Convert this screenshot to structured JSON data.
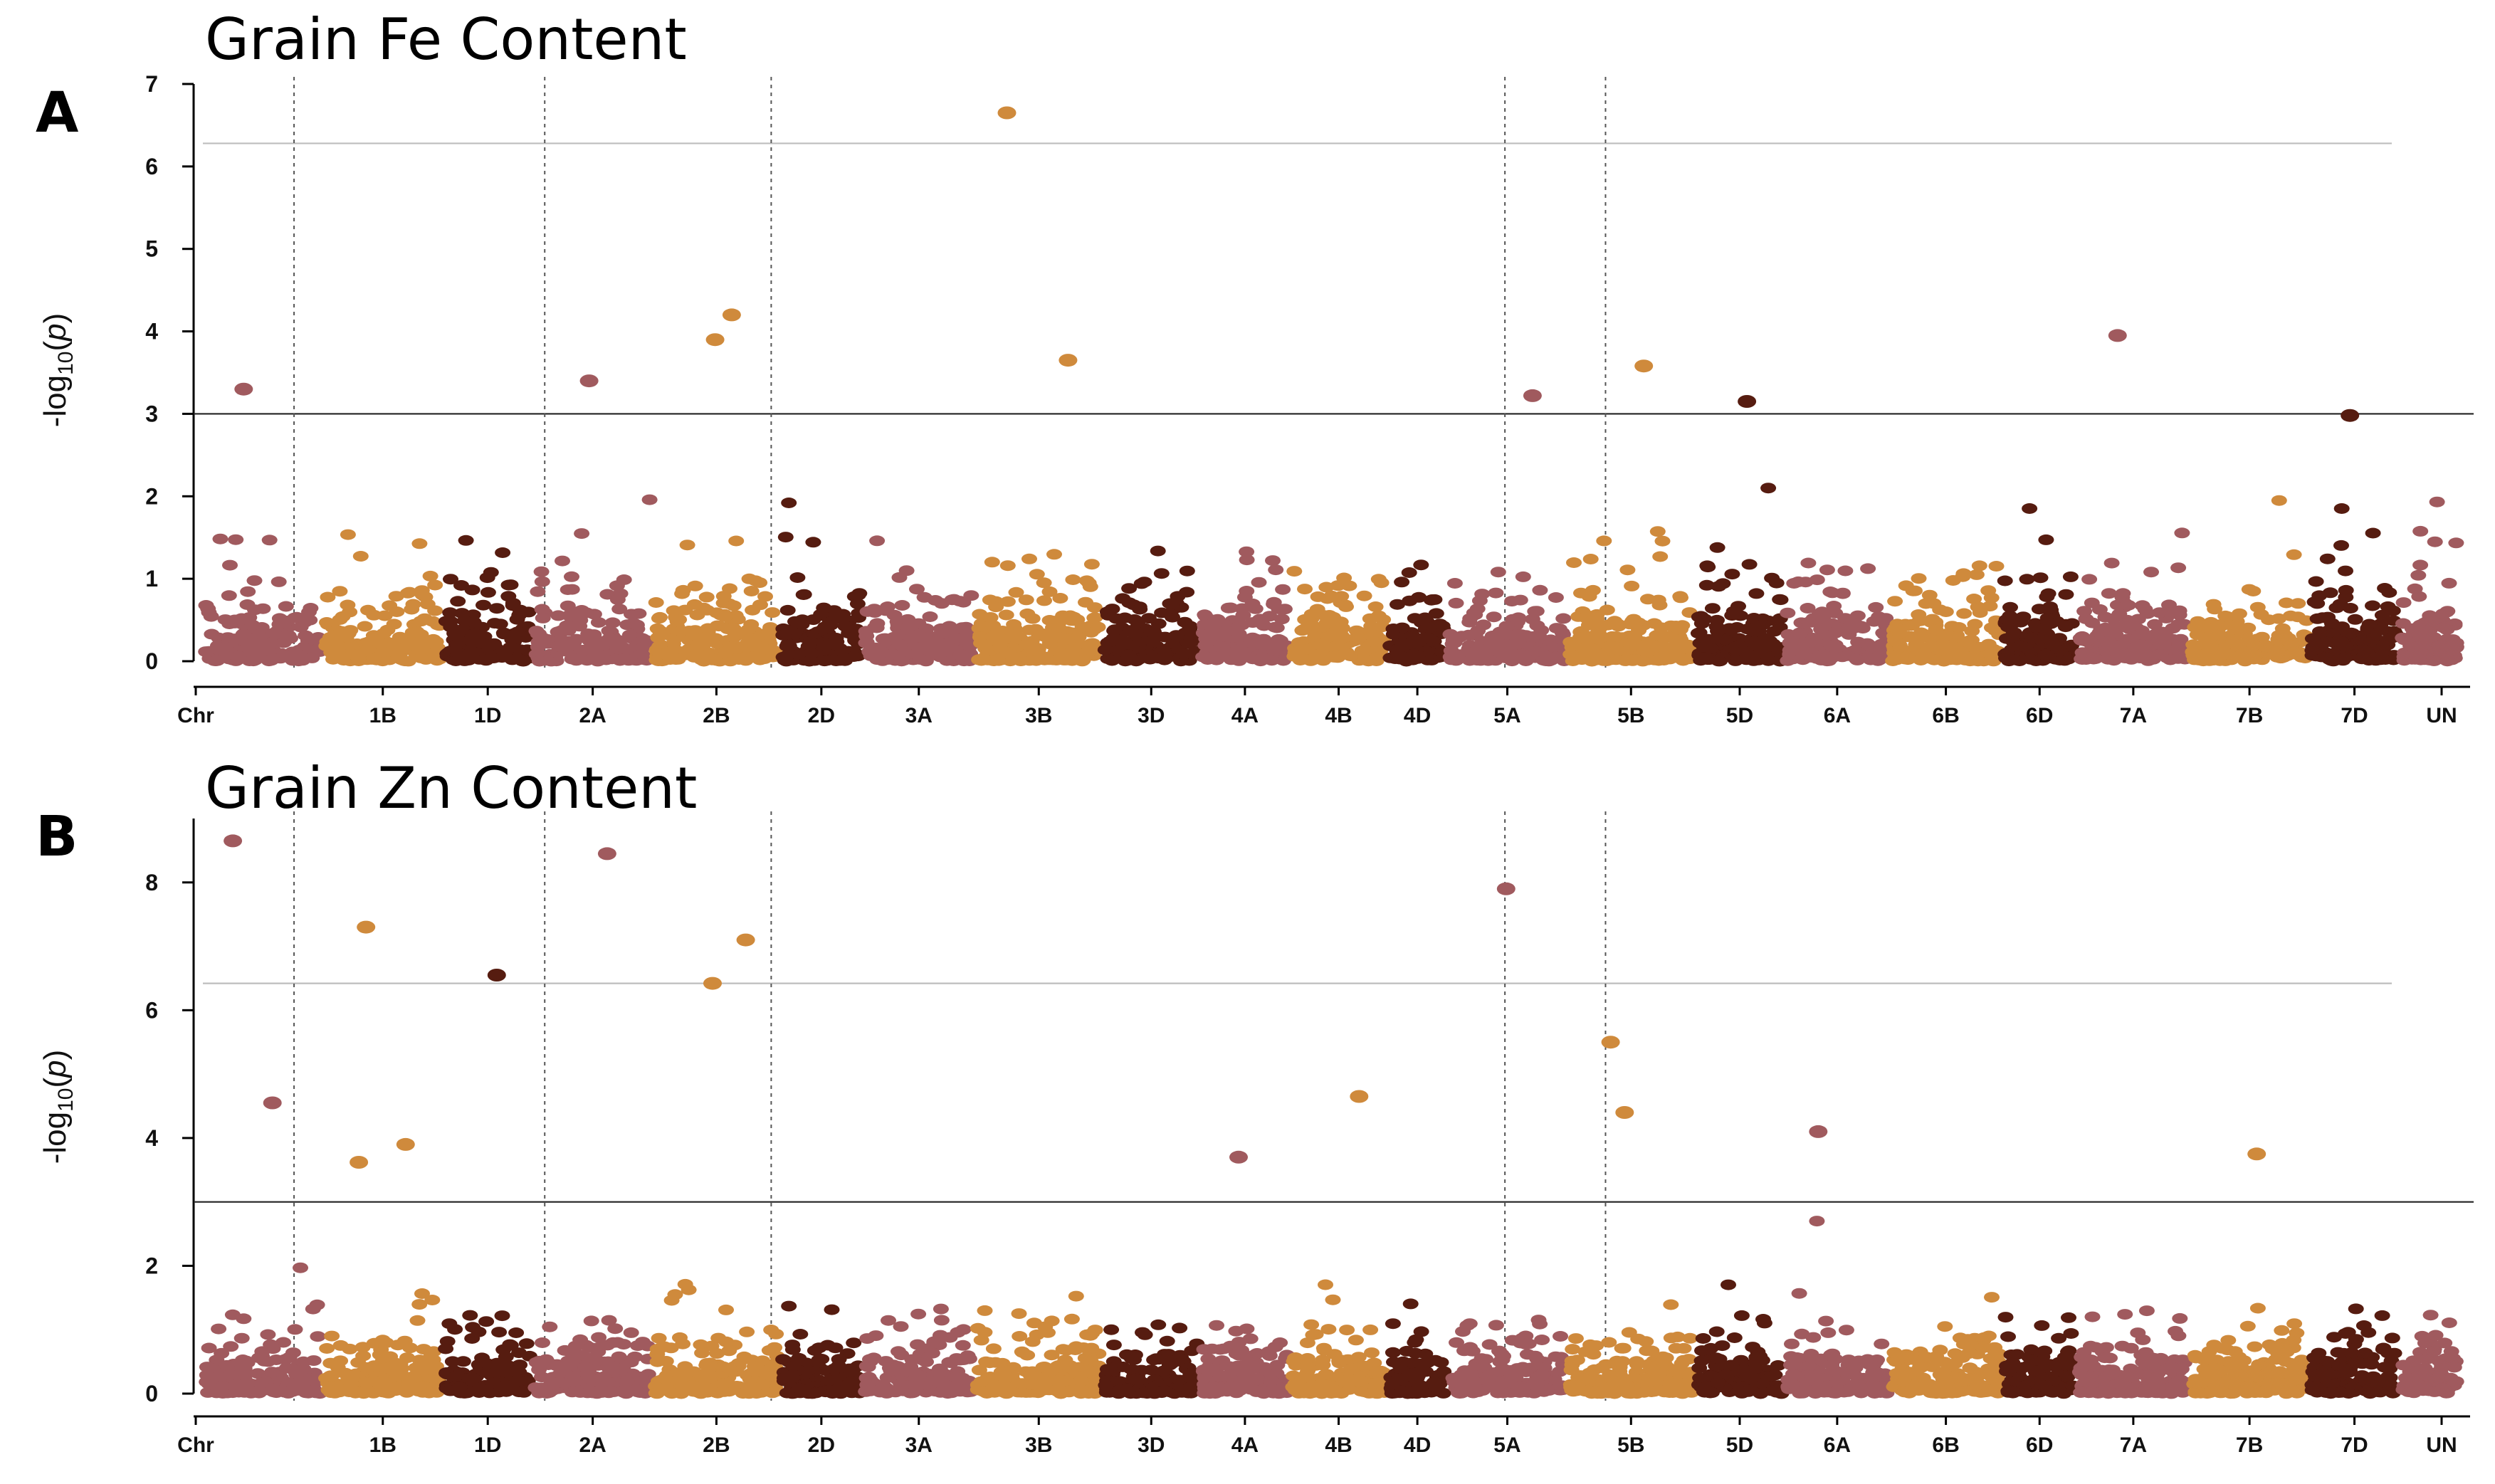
{
  "colors": {
    "c1": "#a05a5e",
    "c2": "#cf8a3c",
    "c3": "#561c10"
  },
  "chart_data": [
    {
      "type": "scatter",
      "panel_label": "A",
      "title": "Grain Fe Content",
      "xlabel": "",
      "ylabel": "-log10(p)",
      "ylim": [
        0,
        7
      ],
      "yticks": [
        "0",
        "1",
        "2",
        "3",
        "4",
        "5",
        "6",
        "7"
      ],
      "x_tick_labels": [
        "Chr",
        "1B",
        "1D",
        "2A",
        "2B",
        "2D",
        "3A",
        "3B",
        "3D",
        "4A",
        "4B",
        "4D",
        "5A",
        "5B",
        "5D",
        "6A",
        "6B",
        "6D",
        "7A",
        "7B",
        "7D",
        "UN"
      ],
      "significance_threshold": 3.0,
      "bonferroni_threshold": 6.28,
      "marker_positions_chr": [
        "1A",
        "2A",
        "2B",
        "5A",
        "5B"
      ],
      "notable_points": [
        {
          "chr": "3B",
          "y": 6.65
        },
        {
          "chr": "2B",
          "y": 4.2
        },
        {
          "chr": "2B",
          "y": 3.9
        },
        {
          "chr": "7A",
          "y": 3.95
        },
        {
          "chr": "3B",
          "y": 3.65
        },
        {
          "chr": "5B",
          "y": 3.58
        },
        {
          "chr": "2A",
          "y": 3.4
        },
        {
          "chr": "1A",
          "y": 3.3
        },
        {
          "chr": "5A",
          "y": 3.22
        },
        {
          "chr": "5D",
          "y": 3.15
        },
        {
          "chr": "7D",
          "y": 2.98
        }
      ]
    },
    {
      "type": "scatter",
      "panel_label": "B",
      "title": "Grain Zn Content",
      "xlabel": "",
      "ylabel": "-log10(p)",
      "ylim": [
        0,
        9
      ],
      "yticks": [
        "0",
        "2",
        "4",
        "6",
        "8"
      ],
      "x_tick_labels": [
        "Chr",
        "1B",
        "1D",
        "2A",
        "2B",
        "2D",
        "3A",
        "3B",
        "3D",
        "4A",
        "4B",
        "4D",
        "5A",
        "5B",
        "5D",
        "6A",
        "6B",
        "6D",
        "7A",
        "7B",
        "7D",
        "UN"
      ],
      "significance_threshold": 3.0,
      "bonferroni_threshold": 6.42,
      "marker_positions_chr": [
        "1A",
        "2A",
        "2B",
        "5A",
        "5B"
      ],
      "notable_points": [
        {
          "chr": "1A",
          "y": 8.65
        },
        {
          "chr": "2A",
          "y": 8.45
        },
        {
          "chr": "5A",
          "y": 7.9
        },
        {
          "chr": "1B",
          "y": 7.3
        },
        {
          "chr": "2B",
          "y": 7.1
        },
        {
          "chr": "1D",
          "y": 6.55
        },
        {
          "chr": "2B",
          "y": 6.42
        },
        {
          "chr": "5B",
          "y": 5.5
        },
        {
          "chr": "4B",
          "y": 4.65
        },
        {
          "chr": "1A",
          "y": 4.55
        },
        {
          "chr": "5B",
          "y": 4.4
        },
        {
          "chr": "6A",
          "y": 4.1
        },
        {
          "chr": "1B",
          "y": 3.9
        },
        {
          "chr": "7B",
          "y": 3.75
        },
        {
          "chr": "4A",
          "y": 3.7
        },
        {
          "chr": "1B",
          "y": 3.62
        }
      ]
    }
  ]
}
